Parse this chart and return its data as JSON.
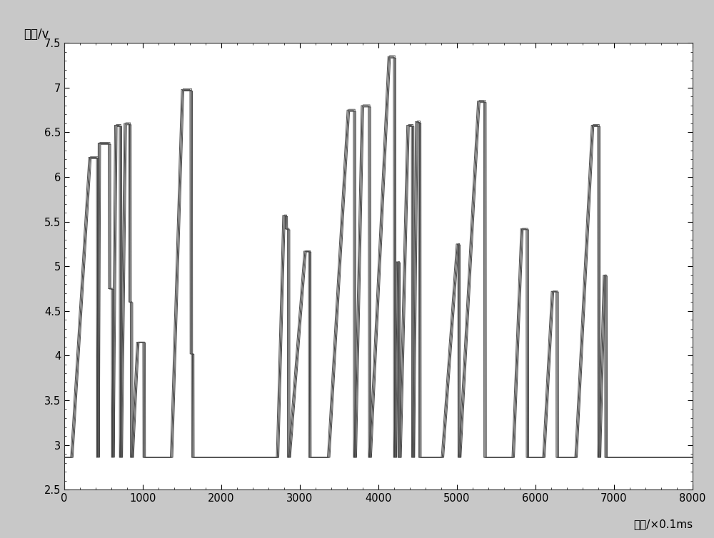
{
  "ylabel": "电压/v",
  "xlabel": "时间/×0.1ms",
  "xlim": [
    0,
    8000
  ],
  "ylim": [
    2.5,
    7.5
  ],
  "xticks": [
    0,
    1000,
    2000,
    3000,
    4000,
    5000,
    6000,
    7000,
    8000
  ],
  "yticks": [
    2.5,
    3.0,
    3.5,
    4.0,
    4.5,
    5.0,
    5.5,
    6.0,
    6.5,
    7.0,
    7.5
  ],
  "baseline": 2.86,
  "line_color": "#505050",
  "line_width": 0.7,
  "fig_background": "#c8c8c8",
  "plot_background": "#ffffff",
  "segments": [
    [
      0,
      2.86
    ],
    [
      80,
      2.86
    ],
    [
      310,
      6.22
    ],
    [
      410,
      6.22
    ],
    [
      411,
      2.86
    ],
    [
      415,
      2.86
    ],
    [
      430,
      6.38
    ],
    [
      560,
      6.38
    ],
    [
      561,
      4.75
    ],
    [
      600,
      4.75
    ],
    [
      601,
      2.86
    ],
    [
      605,
      2.86
    ],
    [
      640,
      6.58
    ],
    [
      700,
      6.58
    ],
    [
      701,
      2.86
    ],
    [
      710,
      2.86
    ],
    [
      760,
      6.6
    ],
    [
      820,
      6.6
    ],
    [
      821,
      4.6
    ],
    [
      840,
      4.6
    ],
    [
      841,
      2.86
    ],
    [
      850,
      2.86
    ],
    [
      920,
      4.15
    ],
    [
      1000,
      4.15
    ],
    [
      1001,
      2.86
    ],
    [
      1010,
      2.86
    ],
    [
      1350,
      2.86
    ],
    [
      1490,
      6.98
    ],
    [
      1600,
      6.98
    ],
    [
      1601,
      4.02
    ],
    [
      1620,
      4.02
    ],
    [
      1621,
      2.86
    ],
    [
      1700,
      2.86
    ],
    [
      2700,
      2.86
    ],
    [
      2780,
      5.57
    ],
    [
      2810,
      5.57
    ],
    [
      2811,
      5.42
    ],
    [
      2840,
      5.42
    ],
    [
      2841,
      2.86
    ],
    [
      2850,
      2.86
    ],
    [
      3050,
      5.17
    ],
    [
      3110,
      5.17
    ],
    [
      3111,
      2.86
    ],
    [
      3130,
      2.86
    ],
    [
      3350,
      2.86
    ],
    [
      3600,
      6.75
    ],
    [
      3680,
      6.75
    ],
    [
      3681,
      2.86
    ],
    [
      3690,
      2.86
    ],
    [
      3780,
      6.8
    ],
    [
      3870,
      6.8
    ],
    [
      3871,
      2.86
    ],
    [
      3880,
      2.86
    ],
    [
      4120,
      7.35
    ],
    [
      4190,
      7.35
    ],
    [
      4191,
      2.86
    ],
    [
      4200,
      2.86
    ],
    [
      4230,
      5.05
    ],
    [
      4245,
      5.05
    ],
    [
      4246,
      2.86
    ],
    [
      4260,
      2.86
    ],
    [
      4360,
      6.58
    ],
    [
      4420,
      6.58
    ],
    [
      4421,
      2.86
    ],
    [
      4430,
      2.86
    ],
    [
      4470,
      6.62
    ],
    [
      4510,
      6.62
    ],
    [
      4511,
      2.86
    ],
    [
      4530,
      2.86
    ],
    [
      4800,
      2.86
    ],
    [
      4990,
      5.25
    ],
    [
      5010,
      5.25
    ],
    [
      5011,
      2.86
    ],
    [
      5020,
      2.86
    ],
    [
      5260,
      6.85
    ],
    [
      5340,
      6.85
    ],
    [
      5341,
      2.86
    ],
    [
      5360,
      2.86
    ],
    [
      5700,
      2.86
    ],
    [
      5810,
      5.42
    ],
    [
      5845,
      5.42
    ],
    [
      5846,
      5.42
    ],
    [
      5880,
      5.42
    ],
    [
      5881,
      2.86
    ],
    [
      5900,
      2.86
    ],
    [
      6090,
      2.86
    ],
    [
      6200,
      4.72
    ],
    [
      6225,
      4.72
    ],
    [
      6226,
      4.72
    ],
    [
      6260,
      4.72
    ],
    [
      6261,
      2.86
    ],
    [
      6280,
      2.86
    ],
    [
      6500,
      2.86
    ],
    [
      6710,
      6.58
    ],
    [
      6790,
      6.58
    ],
    [
      6791,
      2.86
    ],
    [
      6800,
      2.86
    ],
    [
      6860,
      4.9
    ],
    [
      6880,
      4.9
    ],
    [
      6881,
      2.86
    ],
    [
      6920,
      2.86
    ],
    [
      8000,
      2.86
    ]
  ],
  "probe_offsets": [
    0,
    12,
    22,
    32
  ],
  "probe_scales": [
    1.0,
    0.998,
    1.002,
    0.996
  ]
}
